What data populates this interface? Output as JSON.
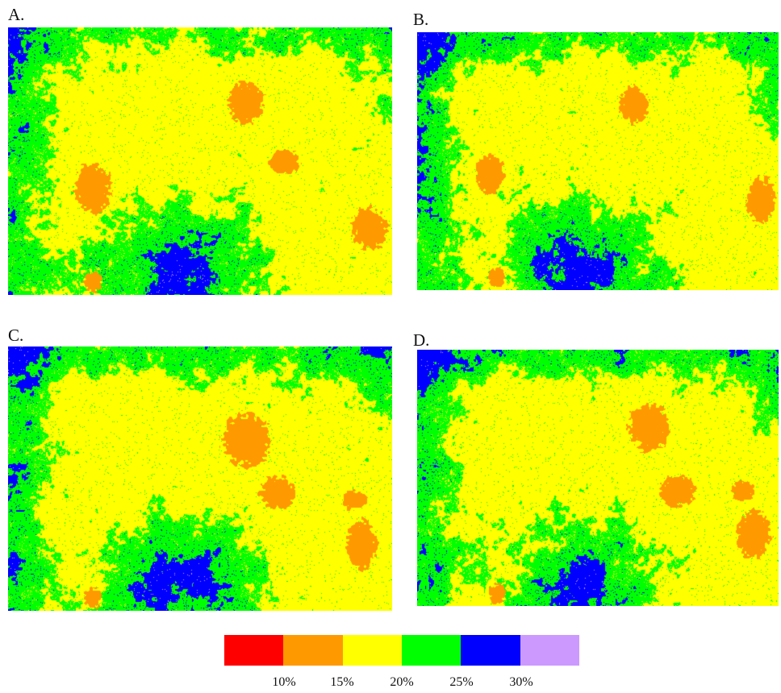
{
  "panels": [
    {
      "label": "A.",
      "seed": 11,
      "zones": {
        "orange": [
          [
            0.62,
            0.28,
            0.06,
            0.1
          ],
          [
            0.72,
            0.5,
            0.05,
            0.06
          ],
          [
            0.22,
            0.6,
            0.06,
            0.12
          ],
          [
            0.94,
            0.75,
            0.06,
            0.1
          ],
          [
            0.22,
            0.95,
            0.03,
            0.05
          ]
        ],
        "south": 1.0,
        "west": 0.95,
        "northGreen": 0.9
      }
    },
    {
      "label": "B.",
      "seed": 23,
      "zones": {
        "orange": [
          [
            0.6,
            0.28,
            0.05,
            0.09
          ],
          [
            0.2,
            0.55,
            0.05,
            0.1
          ],
          [
            0.95,
            0.65,
            0.05,
            0.12
          ],
          [
            0.22,
            0.95,
            0.03,
            0.05
          ]
        ],
        "south": 1.1,
        "west": 1.05,
        "northGreen": 1.0
      }
    },
    {
      "label": "C.",
      "seed": 37,
      "zones": {
        "orange": [
          [
            0.62,
            0.35,
            0.08,
            0.13
          ],
          [
            0.7,
            0.55,
            0.06,
            0.08
          ],
          [
            0.92,
            0.75,
            0.05,
            0.12
          ],
          [
            0.9,
            0.58,
            0.04,
            0.05
          ],
          [
            0.22,
            0.95,
            0.03,
            0.05
          ]
        ],
        "south": 1.05,
        "west": 1.0,
        "northGreen": 1.1
      }
    },
    {
      "label": "D.",
      "seed": 53,
      "zones": {
        "orange": [
          [
            0.64,
            0.3,
            0.07,
            0.12
          ],
          [
            0.72,
            0.55,
            0.06,
            0.08
          ],
          [
            0.93,
            0.72,
            0.06,
            0.12
          ],
          [
            0.9,
            0.55,
            0.04,
            0.05
          ],
          [
            0.22,
            0.95,
            0.03,
            0.05
          ]
        ],
        "south": 0.95,
        "west": 1.0,
        "northGreen": 1.2
      }
    }
  ],
  "palette": {
    "red": "#ff0000",
    "orange": "#ff9900",
    "yellow": "#ffff00",
    "green": "#00ff00",
    "blue": "#0000ff",
    "purple": "#cc99ff"
  },
  "legend": {
    "colors": [
      "#ff0000",
      "#ff9900",
      "#ffff00",
      "#00ff00",
      "#0000ff",
      "#cc99ff"
    ],
    "ticks": [
      "10%",
      "15%",
      "20%",
      "25%",
      "30%"
    ]
  }
}
